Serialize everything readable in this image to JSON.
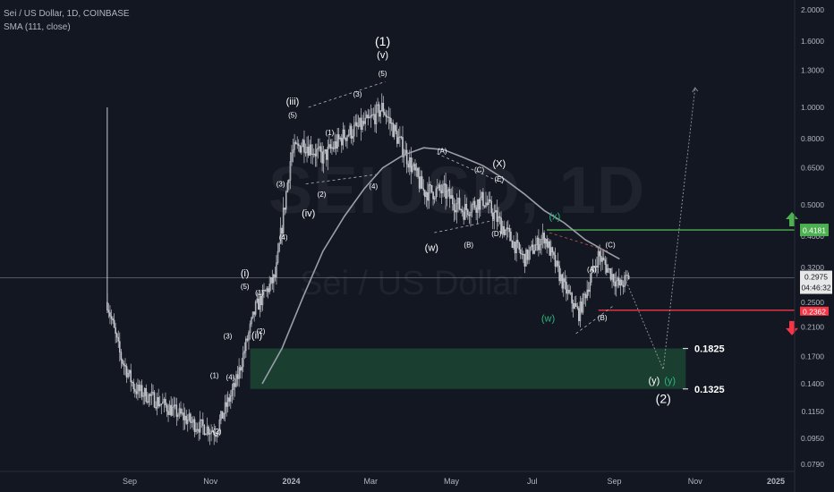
{
  "header": {
    "title": "Sei / US Dollar, 1D, COINBASE",
    "indicator": "SMA (111, close)"
  },
  "watermark": {
    "symbol": "SEIUSD, 1D",
    "name": "Sei / US Dollar"
  },
  "colors": {
    "background": "#131722",
    "candle": "#c7c9cf",
    "sma": "#9a9ea8",
    "target_zone": "#1e4d35",
    "resistance": "#4caf50",
    "support": "#f23645",
    "price_tag": "#e8e8e8",
    "wave_green": "#2fb47c"
  },
  "chart_data": {
    "type": "line",
    "title": "Sei / US Dollar, 1D, COINBASE",
    "xlabel": "",
    "ylabel": "",
    "y_scale": "log",
    "ylim": [
      0.075,
      2.1
    ],
    "x_ticks": [
      "Sep",
      "Nov",
      "2024",
      "Mar",
      "May",
      "Jul",
      "Sep",
      "Nov",
      "2025"
    ],
    "y_ticks": [
      "2.0000",
      "1.6000",
      "1.3000",
      "1.0000",
      "0.8000",
      "0.6500",
      "0.5000",
      "0.4000",
      "0.3200",
      "0.2500",
      "0.2100",
      "0.1700",
      "0.1400",
      "0.1150",
      "0.0950",
      "0.0790"
    ],
    "current_price": "0.2975",
    "countdown": "04:46:32",
    "resistance_level": "0.4181",
    "support_level": "0.2362",
    "targets": [
      "0.1825",
      "0.1325"
    ],
    "grid": false,
    "series": [
      {
        "x": [
          "2023-08-15",
          "2023-08-25",
          "2023-09-05",
          "2023-09-20",
          "2023-10-05",
          "2023-10-20",
          "2023-11-05",
          "2023-11-20",
          "2023-12-05",
          "2023-12-20",
          "2024-01-01",
          "2024-01-10",
          "2024-01-25",
          "2024-02-10",
          "2024-02-28",
          "2024-03-10",
          "2024-03-25",
          "2024-04-10",
          "2024-04-25",
          "2024-05-10",
          "2024-05-25",
          "2024-06-10",
          "2024-06-25",
          "2024-07-10",
          "2024-07-25",
          "2024-08-05",
          "2024-08-20",
          "2024-09-05",
          "2024-09-12"
        ],
        "values": [
          0.25,
          0.17,
          0.135,
          0.125,
          0.115,
          0.105,
          0.1,
          0.14,
          0.24,
          0.3,
          0.72,
          0.78,
          0.7,
          0.82,
          0.9,
          1.0,
          0.75,
          0.55,
          0.55,
          0.48,
          0.52,
          0.42,
          0.34,
          0.4,
          0.28,
          0.23,
          0.35,
          0.28,
          0.3
        ]
      },
      {
        "name": "SMA (111, close)",
        "x": [
          "2023-12-10",
          "2023-12-25",
          "2024-01-10",
          "2024-01-25",
          "2024-02-10",
          "2024-02-25",
          "2024-03-10",
          "2024-03-25",
          "2024-04-10",
          "2024-04-25",
          "2024-05-10",
          "2024-05-25",
          "2024-06-10",
          "2024-06-25",
          "2024-07-10",
          "2024-07-25",
          "2024-08-10",
          "2024-08-25",
          "2024-09-05"
        ],
        "values": [
          0.14,
          0.18,
          0.26,
          0.36,
          0.46,
          0.56,
          0.65,
          0.71,
          0.75,
          0.74,
          0.7,
          0.66,
          0.6,
          0.54,
          0.48,
          0.44,
          0.39,
          0.36,
          0.34
        ]
      }
    ],
    "projection": {
      "x": [
        "2024-09-10",
        "2024-10-08",
        "2024-11-01"
      ],
      "values": [
        0.29,
        0.155,
        1.15
      ]
    },
    "wave_labels": [
      {
        "text": "(1)",
        "x": "2024-03-10",
        "y": 1.55,
        "size": "lg"
      },
      {
        "text": "(v)",
        "x": "2024-03-10",
        "y": 1.42,
        "size": "md"
      },
      {
        "text": "(5)",
        "x": "2024-03-10",
        "y": 1.25,
        "size": "sm"
      },
      {
        "text": "(iii)",
        "x": "2024-01-02",
        "y": 1.02,
        "size": "md"
      },
      {
        "text": "(5)",
        "x": "2024-01-02",
        "y": 0.93,
        "size": "sm"
      },
      {
        "text": "(3)",
        "x": "2024-02-20",
        "y": 1.08,
        "size": "sm"
      },
      {
        "text": "(1)",
        "x": "2024-01-30",
        "y": 0.82,
        "size": "sm"
      },
      {
        "text": "(2)",
        "x": "2024-01-24",
        "y": 0.53,
        "size": "sm"
      },
      {
        "text": "(4)",
        "x": "2024-03-03",
        "y": 0.56,
        "size": "sm"
      },
      {
        "text": "(3)",
        "x": "2023-12-24",
        "y": 0.57,
        "size": "sm"
      },
      {
        "text": "(iv)",
        "x": "2024-01-14",
        "y": 0.46,
        "size": "md"
      },
      {
        "text": "(4)",
        "x": "2023-12-26",
        "y": 0.39,
        "size": "sm"
      },
      {
        "text": "(i)",
        "x": "2023-11-27",
        "y": 0.3,
        "size": "md"
      },
      {
        "text": "(5)",
        "x": "2023-11-27",
        "y": 0.275,
        "size": "sm"
      },
      {
        "text": "(1)",
        "x": "2023-12-08",
        "y": 0.263,
        "size": "sm"
      },
      {
        "text": "(2)",
        "x": "2023-12-09",
        "y": 0.2,
        "size": "sm"
      },
      {
        "text": "(ii)",
        "x": "2023-12-06",
        "y": 0.193,
        "size": "md"
      },
      {
        "text": "(3)",
        "x": "2023-11-14",
        "y": 0.193,
        "size": "sm"
      },
      {
        "text": "(4)",
        "x": "2023-11-16",
        "y": 0.144,
        "size": "sm"
      },
      {
        "text": "(1)",
        "x": "2023-11-04",
        "y": 0.146,
        "size": "sm"
      },
      {
        "text": "(2)",
        "x": "2023-11-06",
        "y": 0.098,
        "size": "sm"
      },
      {
        "text": "(A)",
        "x": "2024-04-24",
        "y": 0.72,
        "size": "sm"
      },
      {
        "text": "(C)",
        "x": "2024-05-22",
        "y": 0.63,
        "size": "sm"
      },
      {
        "text": "(X)",
        "x": "2024-06-06",
        "y": 0.655,
        "size": "md"
      },
      {
        "text": "(E)",
        "x": "2024-06-06",
        "y": 0.59,
        "size": "sm"
      },
      {
        "text": "(w)",
        "x": "2024-04-16",
        "y": 0.36,
        "size": "md"
      },
      {
        "text": "(B)",
        "x": "2024-05-14",
        "y": 0.37,
        "size": "sm"
      },
      {
        "text": "(D)",
        "x": "2024-06-04",
        "y": 0.4,
        "size": "sm"
      },
      {
        "text": "(x)",
        "x": "2024-07-18",
        "y": 0.45,
        "size": "md",
        "color": "green"
      },
      {
        "text": "(w)",
        "x": "2024-07-13",
        "y": 0.218,
        "size": "md",
        "color": "green"
      },
      {
        "text": "(C)",
        "x": "2024-08-29",
        "y": 0.37,
        "size": "sm"
      },
      {
        "text": "(A)",
        "x": "2024-08-15",
        "y": 0.31,
        "size": "sm"
      },
      {
        "text": "(B)",
        "x": "2024-08-23",
        "y": 0.22,
        "size": "sm"
      },
      {
        "text": "(y)",
        "x": "2024-10-01",
        "y": 0.14,
        "size": "md"
      },
      {
        "text": "(y)",
        "x": "2024-10-13",
        "y": 0.14,
        "size": "md",
        "color": "green"
      },
      {
        "text": "(2)",
        "x": "2024-10-08",
        "y": 0.122,
        "size": "lg"
      }
    ]
  }
}
